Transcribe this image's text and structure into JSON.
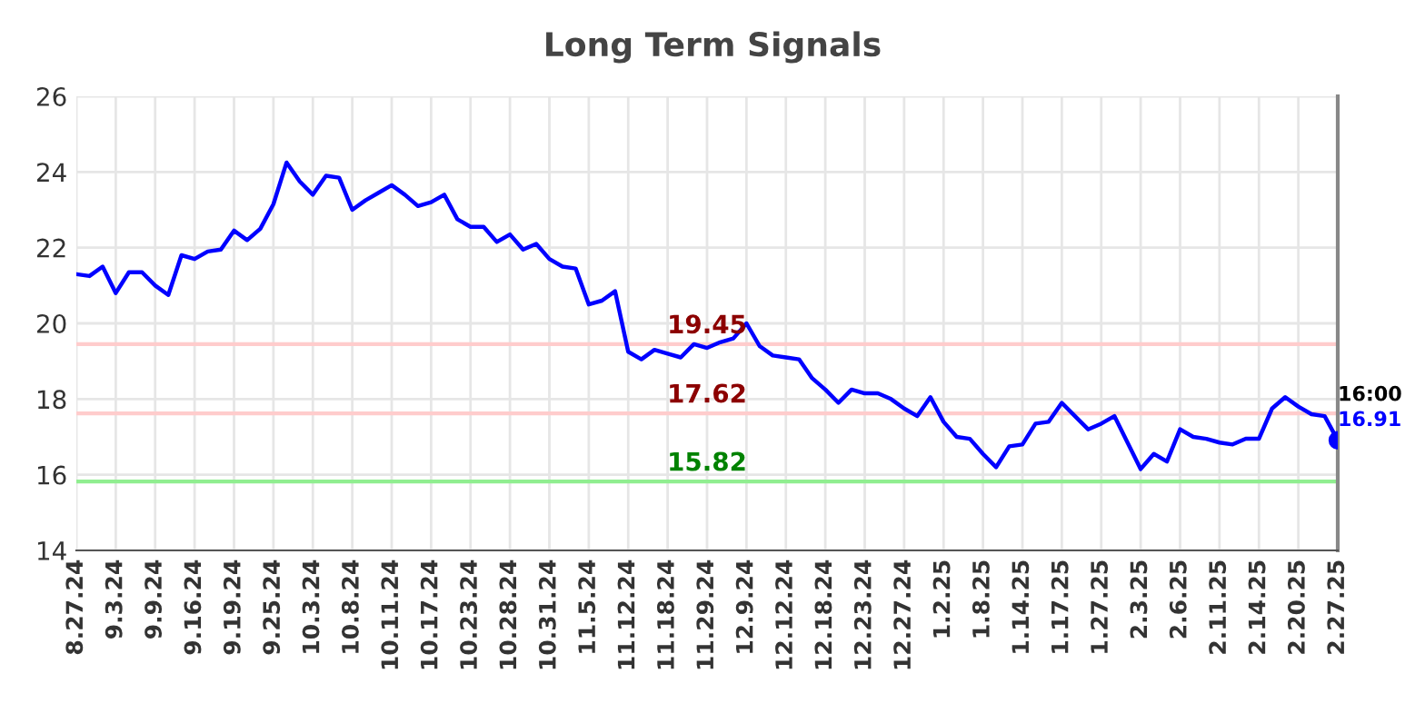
{
  "chart_data": {
    "type": "line",
    "title": "Long Term Signals",
    "categories": [
      "8.27.24",
      null,
      null,
      "9.3.24",
      null,
      null,
      "9.9.24",
      null,
      null,
      "9.16.24",
      null,
      null,
      "9.19.24",
      null,
      null,
      "9.25.24",
      null,
      null,
      "10.3.24",
      null,
      null,
      "10.8.24",
      null,
      null,
      "10.11.24",
      null,
      null,
      "10.17.24",
      null,
      null,
      "10.23.24",
      null,
      null,
      "10.28.24",
      null,
      null,
      "10.31.24",
      null,
      null,
      "11.5.24",
      null,
      null,
      "11.12.24",
      null,
      null,
      "11.18.24",
      null,
      null,
      "11.29.24",
      null,
      null,
      "12.9.24",
      null,
      null,
      "12.12.24",
      null,
      null,
      "12.18.24",
      null,
      null,
      "12.23.24",
      null,
      null,
      "12.27.24",
      null,
      null,
      "1.2.25",
      null,
      null,
      "1.8.25",
      null,
      null,
      "1.14.25",
      null,
      null,
      "1.17.25",
      null,
      null,
      "1.27.25",
      null,
      null,
      "2.3.25",
      null,
      null,
      "2.6.25",
      null,
      null,
      "2.11.25",
      null,
      null,
      "2.14.25",
      null,
      null,
      "2.20.25",
      null,
      null,
      "2.27.25"
    ],
    "series": [
      {
        "color": "#0000ff",
        "marker": "none",
        "values": [
          21.3,
          21.25,
          21.5,
          20.8,
          21.35,
          21.35,
          21.0,
          20.75,
          21.8,
          21.7,
          21.9,
          21.95,
          22.45,
          22.2,
          22.5,
          23.15,
          24.25,
          23.75,
          23.4,
          23.9,
          23.85,
          23.0,
          23.25,
          23.45,
          23.65,
          23.4,
          23.1,
          23.2,
          23.4,
          22.75,
          22.55,
          22.55,
          22.15,
          22.35,
          21.95,
          22.1,
          21.7,
          21.5,
          21.45,
          20.5,
          20.6,
          20.85,
          19.25,
          19.05,
          19.3,
          19.2,
          19.1,
          19.45,
          19.35,
          19.5,
          19.6,
          20.0,
          19.4,
          19.15,
          19.1,
          19.05,
          18.55,
          18.25,
          17.9,
          18.25,
          18.15,
          18.15,
          18.0,
          17.75,
          17.55,
          18.05,
          17.4,
          17.0,
          16.95,
          16.55,
          16.2,
          16.75,
          16.8,
          17.35,
          17.4,
          17.9,
          17.55,
          17.2,
          17.35,
          17.55,
          16.85,
          16.15,
          16.55,
          16.35,
          17.2,
          17.0,
          16.95,
          16.85,
          16.8,
          16.95,
          16.95,
          17.75,
          18.05,
          17.8,
          17.6,
          17.55,
          16.91
        ]
      },
      {
        "type": "scatter",
        "marker": "circle",
        "color": "#0000ff",
        "x": [
          "2.27.25"
        ],
        "values": [
          16.91
        ]
      }
    ],
    "ylim": [
      14,
      26
    ],
    "yticks": [
      14,
      16,
      18,
      20,
      22,
      24,
      26
    ],
    "ref_lines": [
      {
        "axis": "y",
        "value": 19.45,
        "label": "19.45",
        "color": "#ffcccc"
      },
      {
        "axis": "y",
        "value": 17.62,
        "label": "17.62",
        "color": "#ffcccc"
      },
      {
        "axis": "y",
        "value": 15.82,
        "label": "15.82",
        "color": "#90ee90"
      }
    ],
    "annotations": [
      {
        "text": "16:00",
        "x": "2.27.25",
        "y": 16.91
      },
      {
        "text": "16.91",
        "x": "2.27.25",
        "y": 16.91
      }
    ],
    "grid": true,
    "legend": false,
    "line_style": "solid"
  }
}
